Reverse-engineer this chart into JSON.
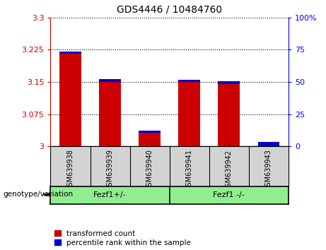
{
  "title": "GDS4446 / 10484760",
  "samples": [
    "GSM639938",
    "GSM639939",
    "GSM639940",
    "GSM639941",
    "GSM639942",
    "GSM639943"
  ],
  "red_values": [
    3.215,
    3.15,
    3.032,
    3.15,
    3.145,
    3.0
  ],
  "blue_heights": [
    0.006,
    0.006,
    0.005,
    0.005,
    0.006,
    0.01
  ],
  "red_color": "#cc0000",
  "blue_color": "#0000cc",
  "ymin": 3.0,
  "ymax": 3.3,
  "yticks": [
    3.0,
    3.075,
    3.15,
    3.225,
    3.3
  ],
  "ytick_labels": [
    "3",
    "3.075",
    "3.15",
    "3.225",
    "3.3"
  ],
  "y2min": 0,
  "y2max": 100,
  "y2ticks": [
    0,
    25,
    50,
    75,
    100
  ],
  "y2tick_labels": [
    "0",
    "25",
    "50",
    "75",
    "100%"
  ],
  "group_labels": [
    "Fezf1+/-",
    "Fezf1 -/-"
  ],
  "group_boundaries": [
    0,
    3,
    6
  ],
  "genotype_label": "genotype/variation",
  "legend_items": [
    {
      "label": "transformed count",
      "color": "#cc0000"
    },
    {
      "label": "percentile rank within the sample",
      "color": "#0000cc"
    }
  ],
  "bar_width": 0.55,
  "tick_label_area_color": "#d3d3d3",
  "group_area_color": "#90ee90"
}
